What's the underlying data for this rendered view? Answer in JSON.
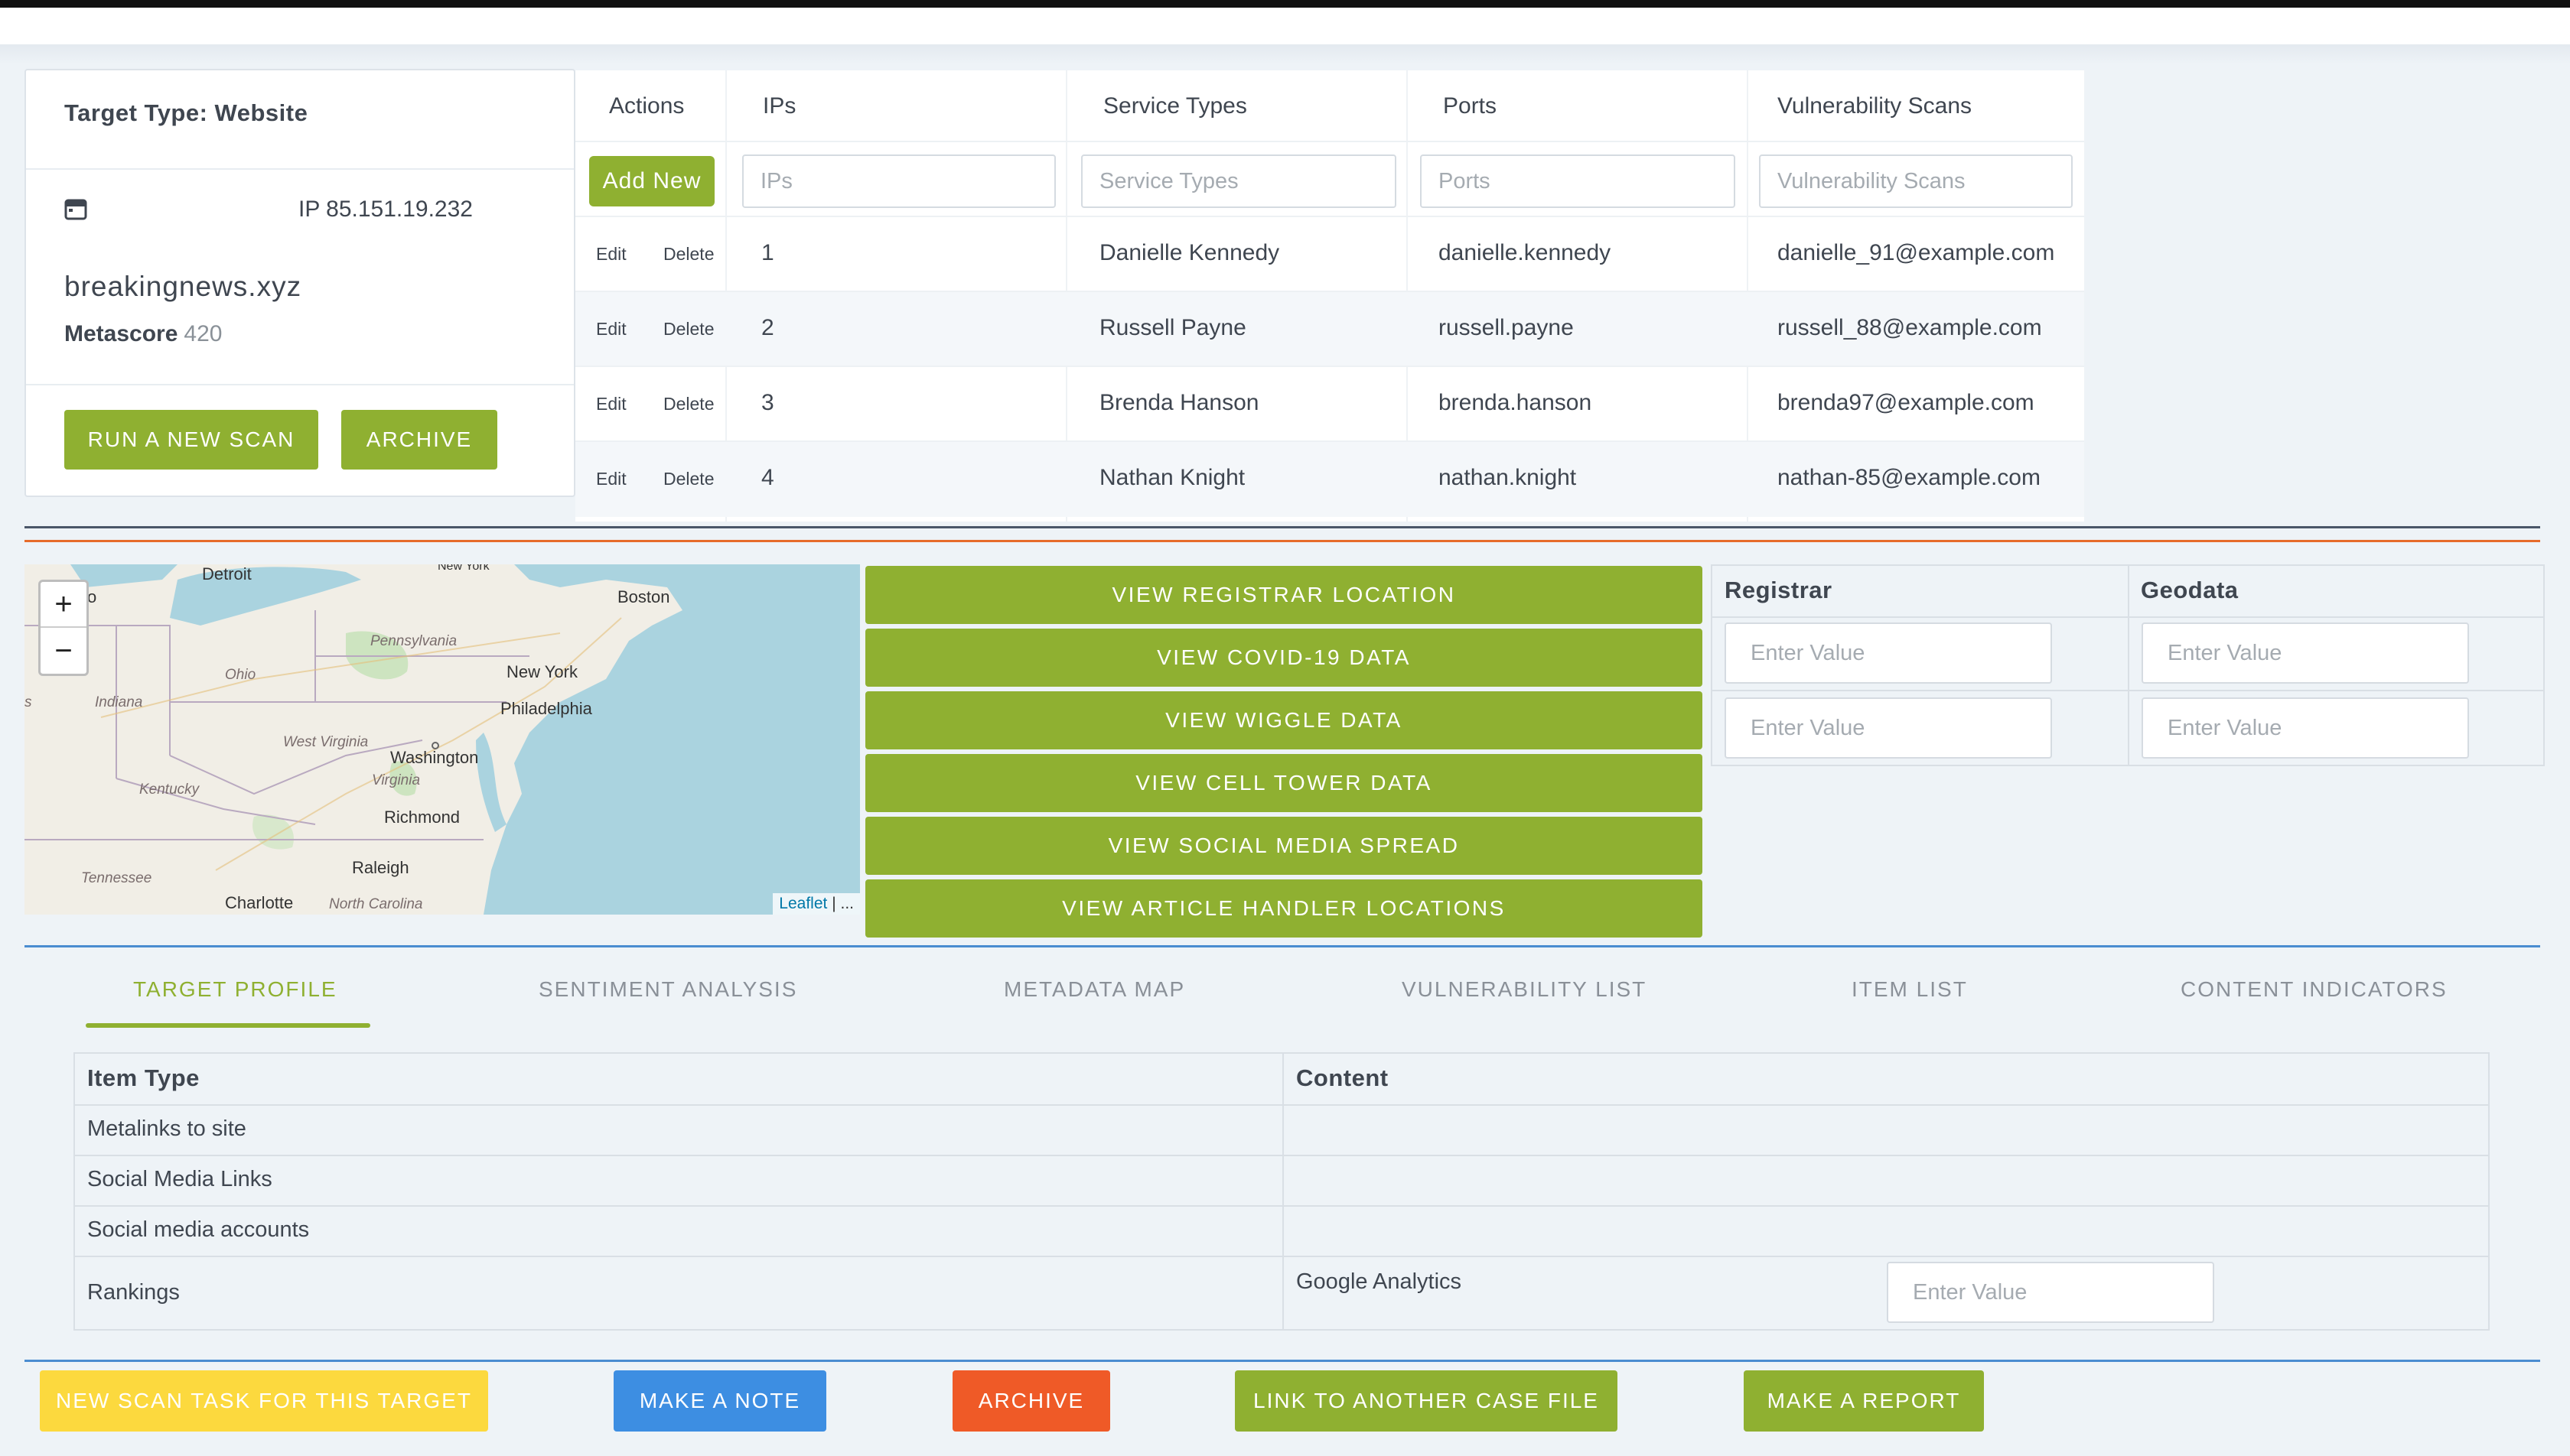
{
  "target_card": {
    "type_label": "Target Type: Website",
    "ip": "IP 85.151.19.232",
    "domain": "breakingnews.xyz",
    "metascore_label": "Metascore",
    "metascore_value": "420",
    "run_scan_label": "RUN A NEW SCAN",
    "archive_label": "ARCHIVE",
    "calendar_icon": "calendar-icon"
  },
  "ip_table": {
    "headers": [
      "Actions",
      "IPs",
      "Service Types",
      "Ports",
      "Vulnerability Scans"
    ],
    "add_new_label": "Add New",
    "filters": {
      "ips": "IPs",
      "service_types": "Service Types",
      "ports": "Ports",
      "vulnerability_scans": "Vulnerability Scans"
    },
    "edit_label": "Edit",
    "delete_label": "Delete",
    "rows": [
      {
        "ip": "1",
        "service": "Danielle Kennedy",
        "port": "danielle.kennedy",
        "scan": "danielle_91@example.com"
      },
      {
        "ip": "2",
        "service": "Russell Payne",
        "port": "russell.payne",
        "scan": "russell_88@example.com"
      },
      {
        "ip": "3",
        "service": "Brenda Hanson",
        "port": "brenda.hanson",
        "scan": "brenda97@example.com"
      },
      {
        "ip": "4",
        "service": "Nathan Knight",
        "port": "nathan.knight",
        "scan": "nathan-85@example.com"
      }
    ]
  },
  "map": {
    "zoom_in": "+",
    "zoom_out": "−",
    "attribution_link": "Leaflet",
    "attribution_rest": " | ...",
    "cities": {
      "detroit": "Detroit",
      "boston": "Boston",
      "new_york": "New York",
      "philadelphia": "Philadelphia",
      "washington": "Washington",
      "richmond": "Richmond",
      "raleigh": "Raleigh",
      "charlotte": "Charlotte",
      "new_york_top": "New York",
      "o": "o"
    },
    "states": {
      "pennsylvania": "Pennsylvania",
      "ohio": "Ohio",
      "indiana": "Indiana",
      "west_virginia": "West Virginia",
      "virginia": "Virginia",
      "kentucky": "Kentucky",
      "tennessee": "Tennessee",
      "north_carolina": "North Carolina",
      "s": "s"
    }
  },
  "view_buttons": [
    "VIEW REGISTRAR LOCATION",
    "VIEW COVID-19 DATA",
    "VIEW WIGGLE DATA",
    "VIEW CELL TOWER DATA",
    "VIEW SOCIAL MEDIA SPREAD",
    "VIEW ARTICLE HANDLER LOCATIONS"
  ],
  "registrar_table": {
    "headers": [
      "Registrar",
      "Geodata"
    ],
    "placeholder": "Enter Value"
  },
  "tabs": [
    "TARGET PROFILE",
    "SENTIMENT ANALYSIS",
    "METADATA MAP",
    "VULNERABILITY LIST",
    "ITEM LIST",
    "CONTENT INDICATORS"
  ],
  "profile_table": {
    "headers": [
      "Item Type",
      "Content"
    ],
    "rows": [
      "Metalinks to site",
      "Social Media Links",
      "Social media accounts",
      "Rankings"
    ],
    "rankings_content": "Google Analytics",
    "placeholder": "Enter Value"
  },
  "bottom_buttons": {
    "new_scan": "NEW SCAN TASK FOR THIS TARGET",
    "make_note": "MAKE A NOTE",
    "archive": "ARCHIVE",
    "link_case": "LINK TO ANOTHER CASE FILE",
    "make_report": "MAKE A REPORT"
  },
  "colors": {
    "accent_green": "#8fb031",
    "yellow": "#fcd93e",
    "blue": "#3d8ee2",
    "orange": "#ef5a27"
  }
}
